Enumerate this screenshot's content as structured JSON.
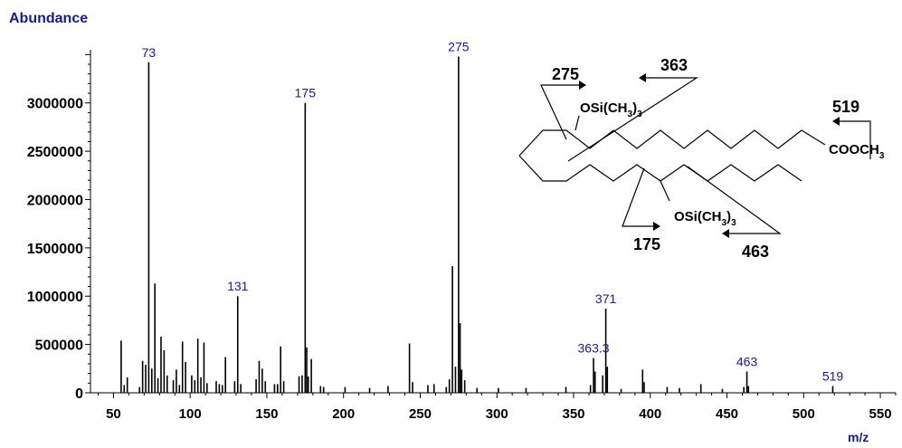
{
  "chart_data": {
    "type": "bar",
    "ylabel": "Abundance",
    "xlabel": "m/z",
    "xlim": [
      35,
      560
    ],
    "ylim": [
      0,
      3550000
    ],
    "x_ticks": [
      50,
      100,
      150,
      200,
      250,
      300,
      350,
      400,
      450,
      500,
      550
    ],
    "y_ticks": [
      0,
      500000,
      1000000,
      1500000,
      2000000,
      2500000,
      3000000
    ],
    "y_tick_labels": [
      "0",
      "500000",
      "1000000",
      "1500000",
      "2000000",
      "2500000",
      "3000000"
    ],
    "x": [
      55,
      57,
      59,
      67,
      69,
      71,
      73,
      75,
      77,
      79,
      81,
      83,
      85,
      89,
      91,
      93,
      95,
      97,
      101,
      103,
      105,
      107,
      109,
      111,
      117,
      119,
      121,
      123,
      129,
      131,
      133,
      143,
      145,
      147,
      149,
      155,
      157,
      159,
      161,
      171,
      173,
      175,
      176,
      177,
      179,
      185,
      187,
      201,
      217,
      229,
      243,
      245,
      255,
      259,
      267,
      269,
      271,
      273,
      275,
      276,
      277,
      279,
      287,
      301,
      319,
      345,
      361,
      363,
      364,
      369,
      371,
      372,
      381,
      395,
      396,
      411,
      419,
      433,
      447,
      461,
      463,
      464,
      519
    ],
    "y": [
      540000,
      80000,
      160000,
      60000,
      330000,
      290000,
      3420000,
      250000,
      1130000,
      150000,
      580000,
      440000,
      180000,
      130000,
      240000,
      80000,
      530000,
      320000,
      180000,
      130000,
      560000,
      160000,
      520000,
      100000,
      120000,
      90000,
      80000,
      370000,
      120000,
      1000000,
      90000,
      140000,
      330000,
      250000,
      120000,
      90000,
      90000,
      480000,
      120000,
      170000,
      180000,
      3000000,
      470000,
      170000,
      350000,
      70000,
      60000,
      60000,
      50000,
      70000,
      510000,
      110000,
      80000,
      90000,
      60000,
      140000,
      1310000,
      270000,
      3480000,
      720000,
      240000,
      130000,
      50000,
      50000,
      50000,
      60000,
      80000,
      360000,
      220000,
      180000,
      870000,
      270000,
      40000,
      240000,
      110000,
      60000,
      50000,
      90000,
      40000,
      60000,
      220000,
      70000,
      70000
    ],
    "peak_labels": [
      {
        "x": 73,
        "y": 3420000,
        "label": "73"
      },
      {
        "x": 131,
        "y": 1000000,
        "label": "131"
      },
      {
        "x": 175,
        "y": 3000000,
        "label": "175"
      },
      {
        "x": 275,
        "y": 3480000,
        "label": "275"
      },
      {
        "x": 363,
        "y": 360000,
        "label": "363.3"
      },
      {
        "x": 371,
        "y": 870000,
        "label": "371"
      },
      {
        "x": 463,
        "y": 220000,
        "label": "463"
      },
      {
        "x": 519,
        "y": 70000,
        "label": "519"
      }
    ],
    "bar_color": "#000000"
  },
  "structure": {
    "substituent_top": "OSi(CH",
    "substituent_top_sub": "3",
    "substituent_top_tail": ")",
    "substituent_top_sub2": "3",
    "substituent_bottom": "OSi(CH",
    "substituent_bottom_sub": "3",
    "substituent_bottom_tail": ")",
    "substituent_bottom_sub2": "3",
    "ester": "COOCH",
    "ester_sub": "3",
    "fragments": [
      "275",
      "363",
      "519",
      "175",
      "463"
    ]
  }
}
